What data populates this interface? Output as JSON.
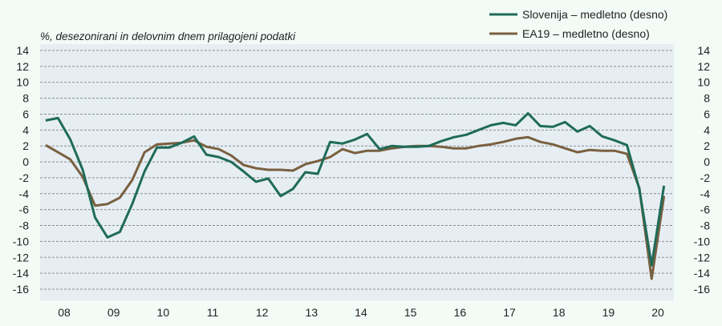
{
  "chart_data": {
    "type": "line",
    "subtitle": "%, desezonirani in delovnim dnem prilagojeni podatki",
    "x_tick_labels": [
      "08",
      "09",
      "10",
      "11",
      "12",
      "13",
      "14",
      "15",
      "16",
      "17",
      "18",
      "19",
      "20"
    ],
    "x_start": "2008Q1",
    "frequency": "quarterly",
    "ylim": [
      -16,
      14
    ],
    "y_ticks": [
      14,
      12,
      10,
      8,
      6,
      4,
      2,
      0,
      -2,
      -4,
      -6,
      -8,
      -10,
      -12,
      -14,
      -16
    ],
    "grid": true,
    "legend_position": "top-right",
    "series": [
      {
        "name": "Slovenija – medletno (desno)",
        "color": "#1f6b58",
        "values": [
          5.2,
          5.5,
          2.8,
          -1.0,
          -7.0,
          -9.5,
          -8.8,
          -5.3,
          -1.2,
          1.8,
          1.8,
          2.4,
          3.2,
          0.9,
          0.6,
          0.0,
          -1.2,
          -2.5,
          -2.1,
          -4.3,
          -3.4,
          -1.3,
          -1.5,
          2.5,
          2.3,
          2.8,
          3.5,
          1.6,
          2.0,
          1.9,
          1.9,
          2.0,
          2.6,
          3.1,
          3.4,
          4.0,
          4.6,
          4.9,
          4.6,
          6.1,
          4.5,
          4.4,
          5.0,
          3.8,
          4.5,
          3.2,
          2.7,
          2.1,
          -3.4,
          -13.0,
          -3.0
        ]
      },
      {
        "name": "EA19 – medletno (desno)",
        "color": "#7a6040",
        "values": [
          2.1,
          1.2,
          0.3,
          -1.9,
          -5.5,
          -5.3,
          -4.5,
          -2.3,
          1.2,
          2.2,
          2.3,
          2.4,
          2.7,
          1.9,
          1.6,
          0.8,
          -0.4,
          -0.8,
          -1.0,
          -1.0,
          -1.1,
          -0.3,
          0.1,
          0.6,
          1.6,
          1.1,
          1.4,
          1.4,
          1.7,
          1.9,
          2.0,
          2.0,
          1.9,
          1.7,
          1.7,
          2.0,
          2.2,
          2.5,
          2.9,
          3.1,
          2.5,
          2.2,
          1.7,
          1.2,
          1.5,
          1.4,
          1.4,
          1.0,
          -3.3,
          -14.7,
          -4.3
        ]
      }
    ]
  }
}
